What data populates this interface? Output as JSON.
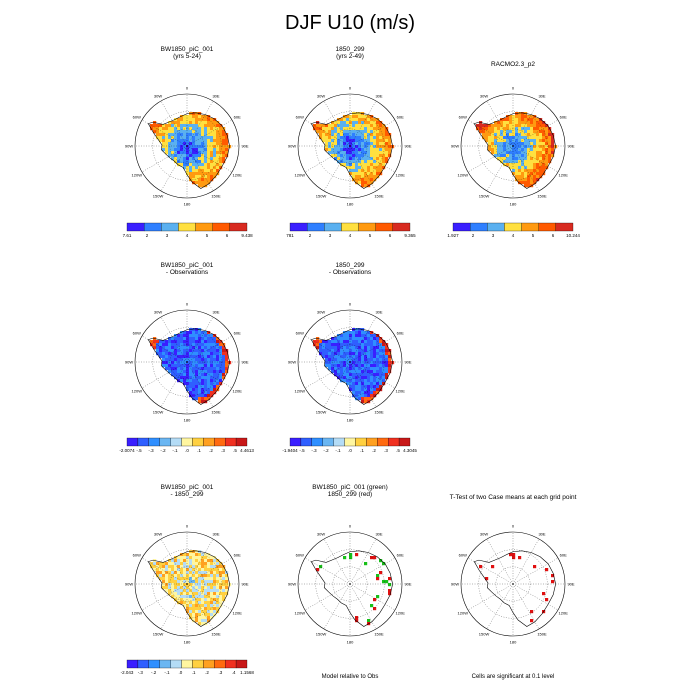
{
  "title": "DJF U10 (m/s)",
  "longitude_labels": [
    "0",
    "30E",
    "60E",
    "90E",
    "120E",
    "150E",
    "180",
    "150W",
    "120W",
    "90W",
    "60W",
    "30W"
  ],
  "palettes": {
    "magnitude": [
      "#3a1fff",
      "#2f7fff",
      "#5ab0f0",
      "#ffe040",
      "#ff9a10",
      "#ff5a00",
      "#d82a20"
    ],
    "difference": [
      "#3a1fff",
      "#2f5fff",
      "#2f8fff",
      "#6ab6f2",
      "#b4dcf6",
      "#fff6a0",
      "#ffd040",
      "#ffa020",
      "#ff6a10",
      "#f03020",
      "#c81818"
    ]
  },
  "chart_data": [
    {
      "type": "heatmap",
      "panel": "r1c1",
      "title_lines": [
        "BW1850_piC_001",
        "(yrs 5-24)"
      ],
      "colorbar": [
        "7.61",
        "2",
        "3",
        "4",
        "5",
        "6",
        "9.438"
      ],
      "palette": "magnitude"
    },
    {
      "type": "heatmap",
      "panel": "r1c2",
      "title_lines": [
        "1850_299",
        "(yrs 2-49)"
      ],
      "colorbar": [
        "781",
        "2",
        "3",
        "4",
        "5",
        "6",
        "9.365"
      ],
      "palette": "magnitude"
    },
    {
      "type": "heatmap",
      "panel": "r1c3",
      "title_lines": [
        "RACMO2.3_p2"
      ],
      "colorbar": [
        "1.927",
        "2",
        "3",
        "4",
        "5",
        "6",
        "10.244"
      ],
      "palette": "magnitude"
    },
    {
      "type": "heatmap",
      "panel": "r2c1",
      "title_lines": [
        "BW1850_piC_001",
        "- Observations"
      ],
      "colorbar": [
        "-2.0074",
        "-.5",
        "-.3",
        "-.2",
        "-.1",
        ".0",
        ".1",
        ".2",
        ".3",
        ".5",
        "4.4613"
      ],
      "palette": "difference"
    },
    {
      "type": "heatmap",
      "panel": "r2c2",
      "title_lines": [
        "1850_299",
        "- Observations"
      ],
      "colorbar": [
        "-1.9404",
        "-.5",
        "-.3",
        "-.2",
        "-.1",
        ".0",
        ".1",
        ".2",
        ".3",
        ".5",
        "4.3045"
      ],
      "palette": "difference"
    },
    {
      "type": "heatmap",
      "panel": "r3c1",
      "title_lines": [
        "BW1850_piC_001",
        "- 1850_299"
      ],
      "colorbar": [
        "-2.043",
        "-.3",
        "-.2",
        "-.1",
        ".0",
        ".1",
        ".2",
        ".3",
        ".4",
        "1.1568"
      ],
      "palette": "difference"
    },
    {
      "type": "heatmap",
      "panel": "r3c2",
      "title_lines": [
        "BW1850_piC_001 (green)",
        "1850_299 (red)"
      ],
      "footnote": "Model relative to Obs"
    },
    {
      "type": "heatmap",
      "panel": "r3c3",
      "title_lines": [
        "T-Test of two Case means at each grid point"
      ],
      "footnote": "Cells are significant at 0.1 level"
    }
  ]
}
